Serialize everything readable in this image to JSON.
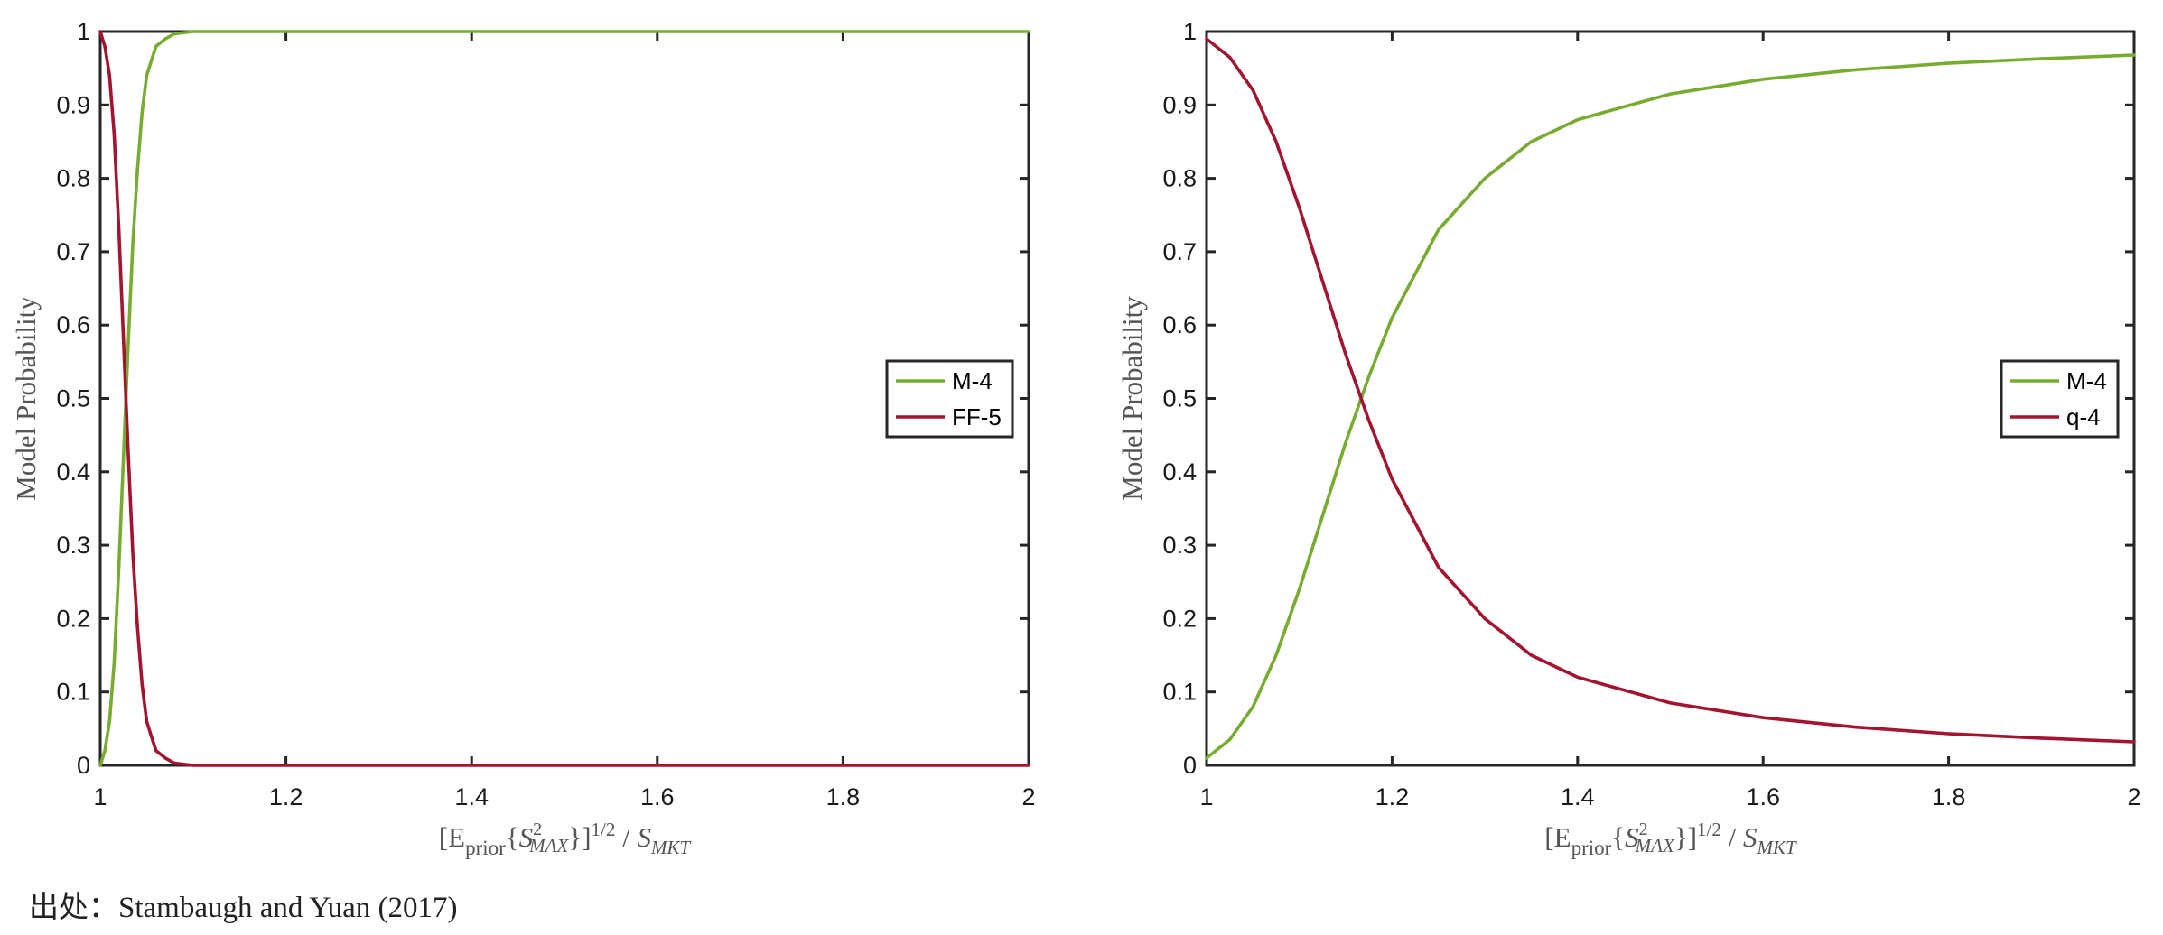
{
  "source_note": "出处：Stambaugh and Yuan (2017)",
  "colors": {
    "m4": "#77AC30",
    "other": "#A2142F",
    "axis": "#262626"
  },
  "chart_data": [
    {
      "type": "line",
      "xlabel": "[E_prior{S²_MAX}]^(1/2) / S_MKT",
      "ylabel": "Model Probability",
      "xlim": [
        1,
        2
      ],
      "ylim": [
        0,
        1
      ],
      "xticks": [
        "1",
        "1.2",
        "1.4",
        "1.6",
        "1.8",
        "2"
      ],
      "yticks": [
        "0",
        "0.1",
        "0.2",
        "0.3",
        "0.4",
        "0.5",
        "0.6",
        "0.7",
        "0.8",
        "0.9",
        "1"
      ],
      "legend_position": "right-center",
      "series": [
        {
          "name": "M-4",
          "color": "#77AC30",
          "x": [
            1.0,
            1.005,
            1.01,
            1.015,
            1.02,
            1.025,
            1.03,
            1.035,
            1.04,
            1.045,
            1.05,
            1.055,
            1.06,
            1.07,
            1.08,
            1.1,
            1.2,
            1.4,
            1.6,
            1.8,
            2.0
          ],
          "y": [
            0.0,
            0.02,
            0.06,
            0.14,
            0.27,
            0.42,
            0.57,
            0.71,
            0.81,
            0.89,
            0.94,
            0.96,
            0.98,
            0.99,
            0.997,
            1.0,
            1.0,
            1.0,
            1.0,
            1.0,
            1.0
          ]
        },
        {
          "name": "FF-5",
          "color": "#A2142F",
          "x": [
            1.0,
            1.005,
            1.01,
            1.015,
            1.02,
            1.025,
            1.03,
            1.035,
            1.04,
            1.045,
            1.05,
            1.055,
            1.06,
            1.07,
            1.08,
            1.1,
            1.2,
            1.4,
            1.6,
            1.8,
            2.0
          ],
          "y": [
            1.0,
            0.98,
            0.94,
            0.86,
            0.73,
            0.58,
            0.43,
            0.29,
            0.19,
            0.11,
            0.06,
            0.04,
            0.02,
            0.01,
            0.003,
            0.0,
            0.0,
            0.0,
            0.0,
            0.0,
            0.0
          ]
        }
      ]
    },
    {
      "type": "line",
      "xlabel": "[E_prior{S²_MAX}]^(1/2) / S_MKT",
      "ylabel": "Model Probability",
      "xlim": [
        1,
        2
      ],
      "ylim": [
        0,
        1
      ],
      "xticks": [
        "1",
        "1.2",
        "1.4",
        "1.6",
        "1.8",
        "2"
      ],
      "yticks": [
        "0",
        "0.1",
        "0.2",
        "0.3",
        "0.4",
        "0.5",
        "0.6",
        "0.7",
        "0.8",
        "0.9",
        "1"
      ],
      "legend_position": "right-center",
      "series": [
        {
          "name": "M-4",
          "color": "#77AC30",
          "x": [
            1.0,
            1.025,
            1.05,
            1.075,
            1.1,
            1.125,
            1.15,
            1.175,
            1.2,
            1.25,
            1.3,
            1.35,
            1.4,
            1.5,
            1.6,
            1.7,
            1.8,
            1.9,
            2.0
          ],
          "y": [
            0.01,
            0.035,
            0.08,
            0.15,
            0.24,
            0.34,
            0.44,
            0.53,
            0.61,
            0.73,
            0.8,
            0.85,
            0.88,
            0.915,
            0.935,
            0.948,
            0.957,
            0.963,
            0.968
          ]
        },
        {
          "name": "q-4",
          "color": "#A2142F",
          "x": [
            1.0,
            1.025,
            1.05,
            1.075,
            1.1,
            1.125,
            1.15,
            1.175,
            1.2,
            1.25,
            1.3,
            1.35,
            1.4,
            1.5,
            1.6,
            1.7,
            1.8,
            1.9,
            2.0
          ],
          "y": [
            0.99,
            0.965,
            0.92,
            0.85,
            0.76,
            0.66,
            0.56,
            0.47,
            0.39,
            0.27,
            0.2,
            0.15,
            0.12,
            0.085,
            0.065,
            0.052,
            0.043,
            0.037,
            0.032
          ]
        }
      ]
    }
  ]
}
